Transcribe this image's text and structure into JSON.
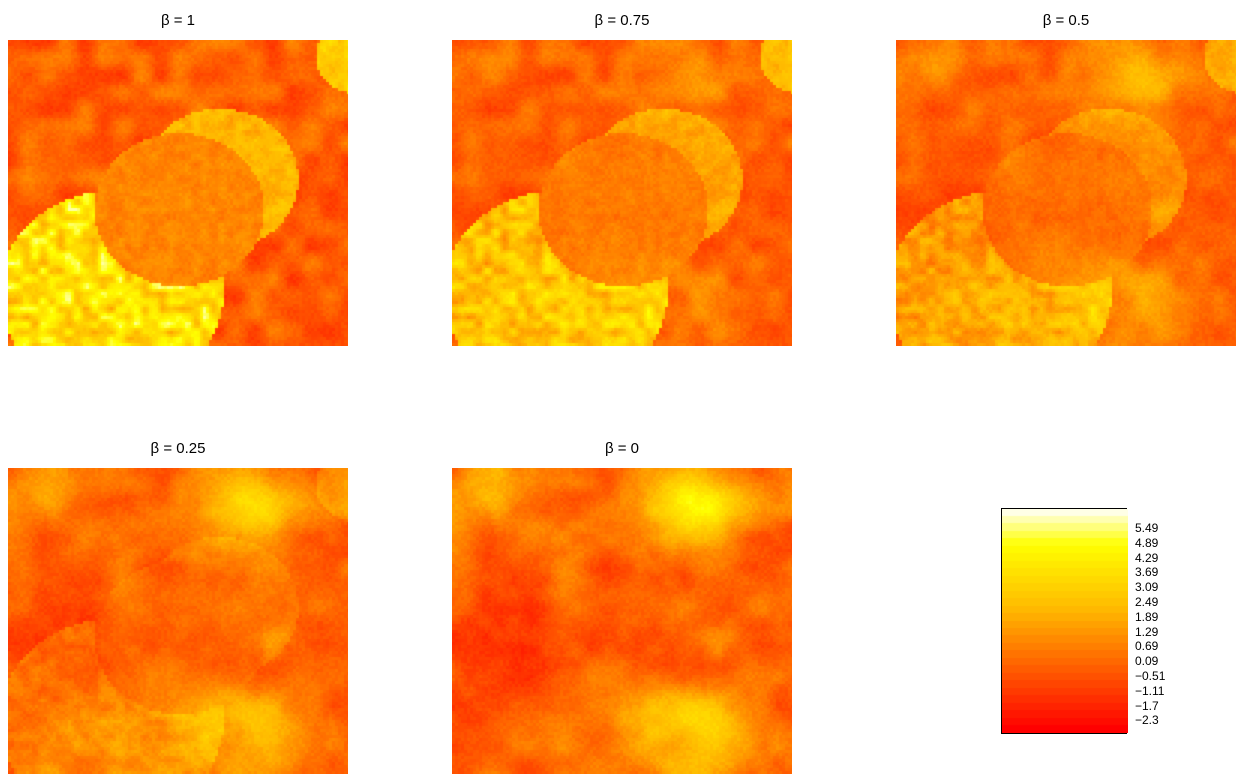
{
  "chart_data": {
    "type": "heatmap",
    "panels": [
      {
        "title": "β = 1"
      },
      {
        "title": "β = 0.75"
      },
      {
        "title": "β = 0.5"
      },
      {
        "title": "β = 0.25"
      },
      {
        "title": "β = 0"
      }
    ],
    "legend": {
      "placement": "bottom-right",
      "tick_labels": [
        "5.49",
        "4.89",
        "4.29",
        "3.69",
        "3.09",
        "2.49",
        "1.89",
        "1.29",
        "0.69",
        "0.09",
        "−0.51",
        "−1.11",
        "−1.7",
        "−2.3"
      ],
      "range": [
        -2.3,
        6.09
      ]
    },
    "colors": {
      "low": "#ff0000",
      "mid": "#ff8c00",
      "high": "#ffff00",
      "top": "#ffffe6"
    },
    "grid": false
  }
}
